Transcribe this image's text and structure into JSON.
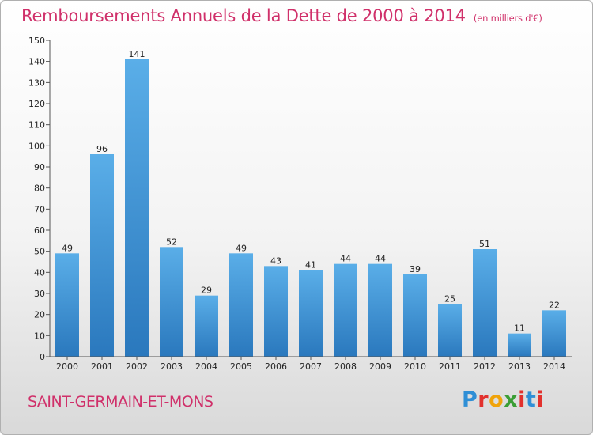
{
  "header": {
    "title": "Remboursements Annuels de la Dette de 2000 à 2014",
    "unit": "(en milliers d'€)"
  },
  "footer": {
    "city": "SAINT-GERMAIN-ET-MONS",
    "logo": "Proxiti"
  },
  "colors": {
    "title": "#d0306a",
    "bar_top": "#5aaee8",
    "bar_bottom": "#2a78bd",
    "logo_letters": [
      "#2f8fd6",
      "#e2312d",
      "#f0a30a",
      "#3a9e35",
      "#e2312d",
      "#2f8fd6",
      "#e2312d"
    ]
  },
  "chart_data": {
    "type": "bar",
    "title": "Remboursements Annuels de la Dette de 2000 à 2014",
    "xlabel": "",
    "ylabel": "",
    "ylim": [
      0,
      150
    ],
    "yticks": [
      0,
      10,
      20,
      30,
      40,
      50,
      60,
      70,
      80,
      90,
      100,
      110,
      120,
      130,
      140,
      150
    ],
    "categories": [
      "2000",
      "2001",
      "2002",
      "2003",
      "2004",
      "2005",
      "2006",
      "2007",
      "2008",
      "2009",
      "2010",
      "2011",
      "2012",
      "2013",
      "2014"
    ],
    "values": [
      49,
      96,
      141,
      52,
      29,
      49,
      43,
      41,
      44,
      44,
      39,
      25,
      51,
      11,
      22
    ],
    "grid": false,
    "legend": "none"
  }
}
